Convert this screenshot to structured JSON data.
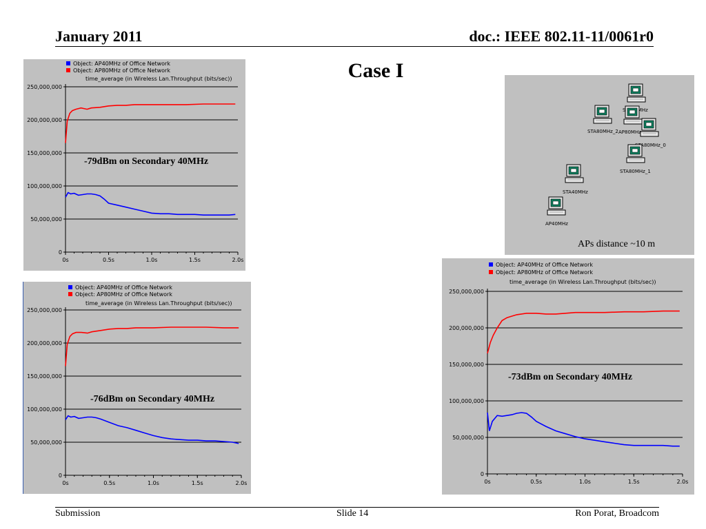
{
  "header": {
    "left": "January 2011",
    "right": "doc.: IEEE 802.11-11/0061r0"
  },
  "title": "Case I",
  "footer": {
    "left": "Submission",
    "center": "Slide 14",
    "right": "Ron Porat, Broadcom"
  },
  "network": {
    "caption": "APs distance ~10 m",
    "nodes": [
      {
        "label": "STA40MHz"
      },
      {
        "label": "STA80MHz_2"
      },
      {
        "label": "AP80MHz"
      },
      {
        "label": "STA80MHz_0"
      },
      {
        "label": "STA80MHz_1"
      },
      {
        "label": "STA40MHz"
      },
      {
        "label": "AP40MHz"
      }
    ]
  },
  "colors": {
    "background": "#c0c0c0",
    "ap40": "#0000ff",
    "ap80": "#ff0000"
  },
  "chart_data": [
    {
      "type": "line",
      "annotation": "-79dBm on Secondary 40MHz",
      "legend": [
        "Object: AP40MHz of Office Network",
        "Object: AP80MHz of Office Network"
      ],
      "legend_position": "top",
      "subtitle": "time_average (in Wireless Lan.Throughput (bits/sec))",
      "x_ticks": [
        "0s",
        "0.5s",
        "1.0s",
        "1.5s",
        "2.0s"
      ],
      "y_ticks": [
        "0",
        "50,000,000",
        "100,000,000",
        "150,000,000",
        "200,000,000",
        "250,000,000"
      ],
      "xlim": [
        0,
        2
      ],
      "ylim": [
        0,
        250000000
      ],
      "grid": "horizontal",
      "series": [
        {
          "name": "Object: AP40MHz of Office Network",
          "color": "#0000ff",
          "x": [
            0,
            0.03,
            0.06,
            0.1,
            0.15,
            0.2,
            0.25,
            0.3,
            0.35,
            0.4,
            0.45,
            0.5,
            0.6,
            0.7,
            0.8,
            0.9,
            1.0,
            1.1,
            1.2,
            1.3,
            1.4,
            1.5,
            1.6,
            1.7,
            1.8,
            1.9,
            1.97
          ],
          "values": [
            83000000,
            90000000,
            88000000,
            89000000,
            86000000,
            87000000,
            88000000,
            88000000,
            87000000,
            85000000,
            80000000,
            74000000,
            71000000,
            68000000,
            65000000,
            62000000,
            59000000,
            58000000,
            58000000,
            57000000,
            57000000,
            57000000,
            56000000,
            56000000,
            56000000,
            56000000,
            57000000
          ]
        },
        {
          "name": "Object: AP80MHz of Office Network",
          "color": "#ff0000",
          "x": [
            0,
            0.02,
            0.05,
            0.08,
            0.12,
            0.18,
            0.25,
            0.3,
            0.4,
            0.5,
            0.6,
            0.7,
            0.8,
            0.9,
            1.0,
            1.2,
            1.4,
            1.6,
            1.8,
            1.97
          ],
          "values": [
            165000000,
            198000000,
            210000000,
            214000000,
            216000000,
            218000000,
            216000000,
            218000000,
            219000000,
            221000000,
            222000000,
            222000000,
            223000000,
            223000000,
            223000000,
            223000000,
            223000000,
            224000000,
            224000000,
            224000000
          ]
        }
      ]
    },
    {
      "type": "line",
      "annotation": "-76dBm on Secondary 40MHz",
      "legend": [
        "Object: AP40MHz of Office Network",
        "Object: AP80MHz of Office Network"
      ],
      "legend_position": "top",
      "subtitle": "time_average (in Wireless Lan.Throughput (bits/sec))",
      "x_ticks": [
        "0s",
        "0.5s",
        "1.0s",
        "1.5s",
        "2.0s"
      ],
      "y_ticks": [
        "0",
        "50,000,000",
        "100,000,000",
        "150,000,000",
        "200,000,000",
        "250,000,000"
      ],
      "xlim": [
        0,
        2
      ],
      "ylim": [
        0,
        250000000
      ],
      "grid": "horizontal",
      "series": [
        {
          "name": "Object: AP40MHz of Office Network",
          "color": "#0000ff",
          "x": [
            0,
            0.03,
            0.06,
            0.1,
            0.15,
            0.2,
            0.25,
            0.3,
            0.35,
            0.4,
            0.5,
            0.6,
            0.7,
            0.8,
            0.9,
            1.0,
            1.1,
            1.2,
            1.3,
            1.4,
            1.5,
            1.6,
            1.7,
            1.8,
            1.9,
            1.97
          ],
          "values": [
            84000000,
            90000000,
            88000000,
            89000000,
            86000000,
            87000000,
            88000000,
            88000000,
            87000000,
            85000000,
            80000000,
            75000000,
            72000000,
            68000000,
            64000000,
            60000000,
            57000000,
            55000000,
            54000000,
            53000000,
            53000000,
            52000000,
            52000000,
            51000000,
            50000000,
            48000000
          ]
        },
        {
          "name": "Object: AP80MHz of Office Network",
          "color": "#ff0000",
          "x": [
            0,
            0.02,
            0.05,
            0.08,
            0.12,
            0.18,
            0.25,
            0.3,
            0.4,
            0.5,
            0.6,
            0.7,
            0.8,
            0.9,
            1.0,
            1.2,
            1.4,
            1.6,
            1.8,
            1.97
          ],
          "values": [
            165000000,
            198000000,
            210000000,
            214000000,
            216000000,
            216000000,
            215000000,
            217000000,
            219000000,
            221000000,
            222000000,
            222000000,
            223000000,
            223000000,
            223000000,
            224000000,
            224000000,
            224000000,
            223000000,
            223000000
          ]
        }
      ]
    },
    {
      "type": "line",
      "annotation": "-73dBm on Secondary 40MHz",
      "legend": [
        "Object: AP40MHz of Office Network",
        "Object: AP80MHz of Office Network"
      ],
      "legend_position": "top",
      "subtitle": "time_average (in Wireless Lan.Throughput (bits/sec))",
      "x_ticks": [
        "0s",
        "0.5s",
        "1.0s",
        "1.5s",
        "2.0s"
      ],
      "y_ticks": [
        "0",
        "50,000,000",
        "100,000,000",
        "150,000,000",
        "200,000,000",
        "250,000,000"
      ],
      "xlim": [
        0,
        2
      ],
      "ylim": [
        0,
        250000000
      ],
      "grid": "horizontal",
      "series": [
        {
          "name": "Object: AP40MHz of Office Network",
          "color": "#0000ff",
          "x": [
            0,
            0.02,
            0.05,
            0.1,
            0.15,
            0.2,
            0.25,
            0.3,
            0.35,
            0.4,
            0.45,
            0.5,
            0.6,
            0.7,
            0.8,
            0.9,
            1.0,
            1.1,
            1.2,
            1.3,
            1.4,
            1.5,
            1.6,
            1.7,
            1.8,
            1.9,
            1.97
          ],
          "values": [
            84000000,
            59000000,
            72000000,
            80000000,
            79000000,
            80000000,
            81000000,
            83000000,
            84000000,
            83000000,
            78000000,
            72000000,
            65000000,
            59000000,
            55000000,
            51000000,
            48000000,
            46000000,
            44000000,
            42000000,
            40000000,
            39000000,
            39000000,
            39000000,
            39000000,
            38000000,
            38000000
          ]
        },
        {
          "name": "Object: AP80MHz of Office Network",
          "color": "#ff0000",
          "x": [
            0,
            0.03,
            0.06,
            0.1,
            0.15,
            0.2,
            0.25,
            0.3,
            0.4,
            0.5,
            0.6,
            0.7,
            0.8,
            0.9,
            1.0,
            1.2,
            1.4,
            1.6,
            1.8,
            1.97
          ],
          "values": [
            165000000,
            180000000,
            190000000,
            200000000,
            210000000,
            214000000,
            216000000,
            218000000,
            220000000,
            220000000,
            219000000,
            219000000,
            220000000,
            221000000,
            221000000,
            221000000,
            222000000,
            222000000,
            223000000,
            223000000
          ]
        }
      ]
    }
  ]
}
